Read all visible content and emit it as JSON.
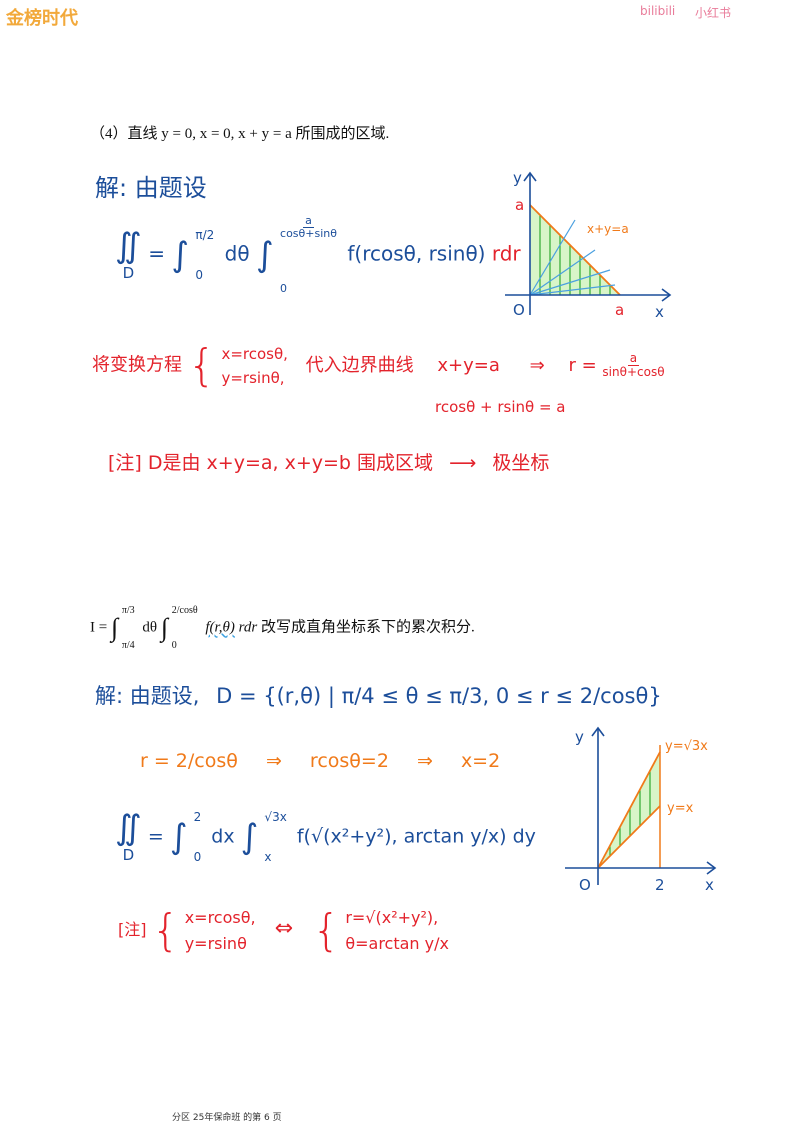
{
  "header": {
    "brand": "金榜时代",
    "links": [
      "bilibili",
      "小红书"
    ]
  },
  "problem_4": {
    "statement": "（4）直线 y = 0, x = 0, x + y = a 所围成的区域.",
    "solution": {
      "intro": "解: 由题设",
      "double_integral": "∬",
      "region": "D",
      "equals": "=",
      "integral": "∫",
      "theta_upper": "π/2",
      "theta_lower": "0",
      "d_theta": "dθ",
      "r_upper_num": "a",
      "r_upper_den": "cosθ+sinθ",
      "r_lower": "0",
      "integrand": "f(rcosθ, rsinθ)",
      "r_dr": "rdr",
      "transform_label": "将变换方程",
      "transform": [
        "x=rcosθ,",
        "y=rsinθ,"
      ],
      "substitute": "代入边界曲线",
      "boundary": "x+y=a",
      "implies": "⇒",
      "r_equals": "r =",
      "r_num": "a",
      "r_den": "sinθ+cosθ",
      "derivation": "rcosθ + rsinθ = a",
      "note": "[注] D是由 x+y=a, x+y=b 围成区域",
      "arrow": "⟶",
      "note_result": "极坐标"
    },
    "diagram": {
      "y_axis": "y",
      "x_axis": "x",
      "origin": "O",
      "y_intercept": "a",
      "x_intercept": "a",
      "line_label": "x+y=a"
    }
  },
  "problem_5": {
    "lhs": "I =",
    "integral": "∫",
    "theta_upper": "π/3",
    "theta_lower": "π/4",
    "d_theta": "dθ",
    "r_upper": "2/cosθ",
    "r_lower": "0",
    "integrand": "f(r,θ)",
    "r_dr": "rdr",
    "text": "改写成直角坐标系下的累次积分.",
    "solution": {
      "intro": "解: 由题设,",
      "region_def": "D = {(r,θ) | π/4 ≤ θ ≤ π/3,  0 ≤ r ≤ 2/cosθ}",
      "step1": "r = 2/cosθ",
      "implies": "⇒",
      "step2": "rcosθ=2",
      "step3": "x=2",
      "double_integral": "∬",
      "region": "D",
      "equals": "=",
      "integral": "∫",
      "x_upper": "2",
      "x_lower": "0",
      "dx": "dx",
      "y_upper": "√3x",
      "y_lower": "x",
      "integrand": "f(√(x²+y²), arctan y/x)",
      "dy": "dy",
      "note_label": "[注]",
      "polar": [
        "x=rcosθ,",
        "y=rsinθ"
      ],
      "equiv": "⇔",
      "cartesian": [
        "r=√(x²+y²),",
        "θ=arctan y/x"
      ]
    },
    "diagram": {
      "y_axis": "y",
      "x_axis": "x",
      "origin": "O",
      "x_mark": "2",
      "upper_line": "y=√3x",
      "lower_line": "y=x"
    }
  },
  "footer": "分区 25年保命班 的第 6 页"
}
